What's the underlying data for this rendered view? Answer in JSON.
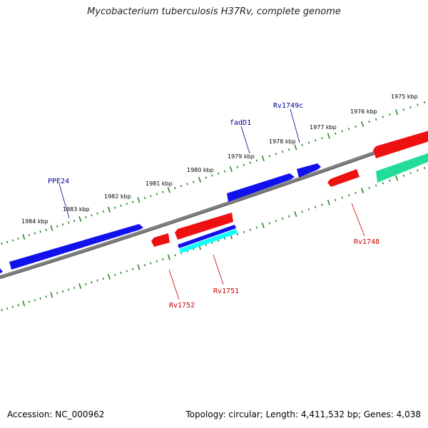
{
  "title": "Mycobacterium tuberculosis H37Rv, complete genome",
  "footer": {
    "accession": "Accession: NC_000962",
    "topology": "Topology: circular; Length: 4,411,532 bp; Genes: 4,038"
  },
  "colors": {
    "backbone": "#808080",
    "forward_gene": "#1111ee",
    "reverse_gene": "#ee1111",
    "rna_gene": "#22dd99",
    "cyan_gene": "#11ffff",
    "tick": "#228822",
    "forward_label": "#000099",
    "reverse_label": "#cc0000"
  },
  "kbp_labels": [
    "1975 kbp",
    "1976 kbp",
    "1977 kbp",
    "1978 kbp",
    "1979 kbp",
    "1980 kbp",
    "1981 kbp",
    "1982 kbp",
    "1983 kbp",
    "1984 kbp"
  ],
  "gene_labels": {
    "forward": [
      "Rv1749c",
      "fadD1",
      "PPE24"
    ],
    "reverse": [
      "Rv1748",
      "Rv1751",
      "Rv1752"
    ]
  }
}
